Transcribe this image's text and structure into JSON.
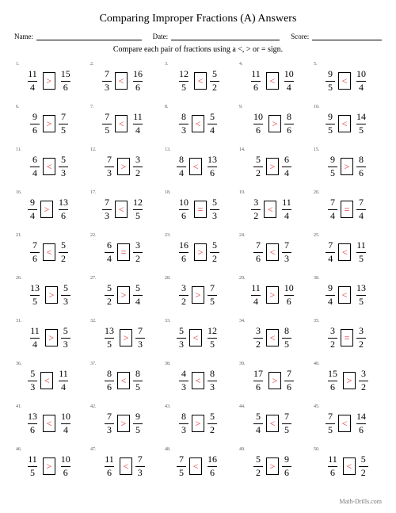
{
  "title": "Comparing Improper Fractions (A) Answers",
  "header": {
    "name_label": "Name:",
    "date_label": "Date:",
    "score_label": "Score:"
  },
  "instruction": "Compare each pair of fractions using a <, > or = sign.",
  "footer": "Math-Drills.com",
  "answer_color": "#d22",
  "problems": [
    {
      "i": 1,
      "a": [
        11,
        4
      ],
      "s": ">",
      "b": [
        15,
        6
      ]
    },
    {
      "i": 2,
      "a": [
        7,
        3
      ],
      "s": "<",
      "b": [
        16,
        6
      ]
    },
    {
      "i": 3,
      "a": [
        12,
        5
      ],
      "s": "<",
      "b": [
        5,
        2
      ]
    },
    {
      "i": 4,
      "a": [
        11,
        6
      ],
      "s": "<",
      "b": [
        10,
        4
      ]
    },
    {
      "i": 5,
      "a": [
        9,
        5
      ],
      "s": "<",
      "b": [
        10,
        4
      ]
    },
    {
      "i": 6,
      "a": [
        9,
        6
      ],
      "s": ">",
      "b": [
        7,
        5
      ]
    },
    {
      "i": 7,
      "a": [
        7,
        5
      ],
      "s": "<",
      "b": [
        11,
        4
      ]
    },
    {
      "i": 8,
      "a": [
        8,
        3
      ],
      "s": "<",
      "b": [
        5,
        4
      ]
    },
    {
      "i": 9,
      "a": [
        10,
        6
      ],
      "s": ">",
      "b": [
        8,
        6
      ]
    },
    {
      "i": 10,
      "a": [
        9,
        5
      ],
      "s": "<",
      "b": [
        14,
        5
      ]
    },
    {
      "i": 11,
      "a": [
        6,
        4
      ],
      "s": "<",
      "b": [
        5,
        3
      ]
    },
    {
      "i": 12,
      "a": [
        7,
        3
      ],
      "s": ">",
      "b": [
        3,
        2
      ]
    },
    {
      "i": 13,
      "a": [
        8,
        4
      ],
      "s": "<",
      "b": [
        13,
        6
      ]
    },
    {
      "i": 14,
      "a": [
        5,
        2
      ],
      "s": ">",
      "b": [
        6,
        4
      ]
    },
    {
      "i": 15,
      "a": [
        9,
        5
      ],
      "s": ">",
      "b": [
        8,
        6
      ]
    },
    {
      "i": 16,
      "a": [
        9,
        4
      ],
      "s": ">",
      "b": [
        13,
        6
      ]
    },
    {
      "i": 17,
      "a": [
        7,
        3
      ],
      "s": "<",
      "b": [
        12,
        5
      ]
    },
    {
      "i": 18,
      "a": [
        10,
        6
      ],
      "s": "=",
      "b": [
        5,
        3
      ]
    },
    {
      "i": 19,
      "a": [
        3,
        2
      ],
      "s": "<",
      "b": [
        11,
        4
      ]
    },
    {
      "i": 20,
      "a": [
        7,
        4
      ],
      "s": "=",
      "b": [
        7,
        4
      ]
    },
    {
      "i": 21,
      "a": [
        7,
        6
      ],
      "s": "<",
      "b": [
        5,
        2
      ]
    },
    {
      "i": 22,
      "a": [
        6,
        4
      ],
      "s": "=",
      "b": [
        3,
        2
      ]
    },
    {
      "i": 23,
      "a": [
        16,
        6
      ],
      "s": ">",
      "b": [
        5,
        2
      ]
    },
    {
      "i": 24,
      "a": [
        7,
        6
      ],
      "s": "<",
      "b": [
        7,
        3
      ]
    },
    {
      "i": 25,
      "a": [
        7,
        4
      ],
      "s": "<",
      "b": [
        11,
        5
      ]
    },
    {
      "i": 26,
      "a": [
        13,
        5
      ],
      "s": ">",
      "b": [
        5,
        3
      ]
    },
    {
      "i": 27,
      "a": [
        5,
        2
      ],
      "s": ">",
      "b": [
        5,
        4
      ]
    },
    {
      "i": 28,
      "a": [
        3,
        2
      ],
      "s": ">",
      "b": [
        7,
        5
      ]
    },
    {
      "i": 29,
      "a": [
        11,
        4
      ],
      "s": ">",
      "b": [
        10,
        6
      ]
    },
    {
      "i": 30,
      "a": [
        9,
        4
      ],
      "s": "<",
      "b": [
        13,
        5
      ]
    },
    {
      "i": 31,
      "a": [
        11,
        4
      ],
      "s": ">",
      "b": [
        5,
        3
      ]
    },
    {
      "i": 32,
      "a": [
        13,
        5
      ],
      "s": ">",
      "b": [
        7,
        3
      ]
    },
    {
      "i": 33,
      "a": [
        5,
        3
      ],
      "s": "<",
      "b": [
        12,
        5
      ]
    },
    {
      "i": 34,
      "a": [
        3,
        2
      ],
      "s": "<",
      "b": [
        8,
        5
      ]
    },
    {
      "i": 35,
      "a": [
        3,
        2
      ],
      "s": "=",
      "b": [
        3,
        2
      ]
    },
    {
      "i": 36,
      "a": [
        5,
        3
      ],
      "s": "<",
      "b": [
        11,
        4
      ]
    },
    {
      "i": 37,
      "a": [
        8,
        6
      ],
      "s": "<",
      "b": [
        8,
        5
      ]
    },
    {
      "i": 38,
      "a": [
        4,
        3
      ],
      "s": "<",
      "b": [
        8,
        3
      ]
    },
    {
      "i": 39,
      "a": [
        17,
        6
      ],
      "s": ">",
      "b": [
        7,
        6
      ]
    },
    {
      "i": 40,
      "a": [
        15,
        6
      ],
      "s": ">",
      "b": [
        3,
        2
      ]
    },
    {
      "i": 41,
      "a": [
        13,
        6
      ],
      "s": "<",
      "b": [
        10,
        4
      ]
    },
    {
      "i": 42,
      "a": [
        7,
        3
      ],
      "s": ">",
      "b": [
        9,
        5
      ]
    },
    {
      "i": 43,
      "a": [
        8,
        3
      ],
      "s": ">",
      "b": [
        5,
        2
      ]
    },
    {
      "i": 44,
      "a": [
        5,
        4
      ],
      "s": "<",
      "b": [
        7,
        5
      ]
    },
    {
      "i": 45,
      "a": [
        7,
        5
      ],
      "s": "<",
      "b": [
        14,
        6
      ]
    },
    {
      "i": 46,
      "a": [
        11,
        5
      ],
      "s": ">",
      "b": [
        10,
        6
      ]
    },
    {
      "i": 47,
      "a": [
        11,
        6
      ],
      "s": "<",
      "b": [
        7,
        3
      ]
    },
    {
      "i": 48,
      "a": [
        7,
        5
      ],
      "s": "<",
      "b": [
        16,
        6
      ]
    },
    {
      "i": 49,
      "a": [
        5,
        2
      ],
      "s": ">",
      "b": [
        9,
        6
      ]
    },
    {
      "i": 50,
      "a": [
        11,
        6
      ],
      "s": "<",
      "b": [
        5,
        2
      ]
    }
  ]
}
